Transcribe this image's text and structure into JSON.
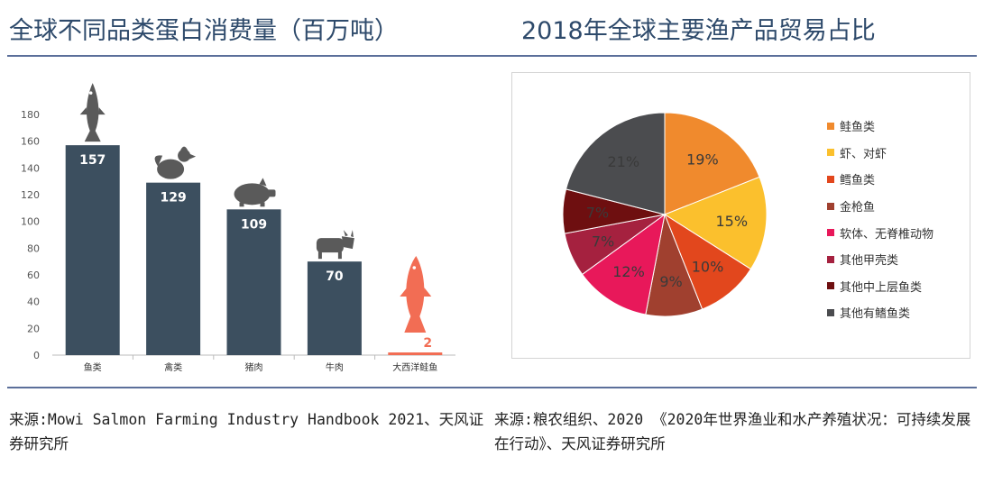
{
  "titles": {
    "left": "全球不同品类蛋白消费量（百万吨）",
    "right": "2018年全球主要渔产品贸易占比"
  },
  "sources": {
    "left": "来源:Mowi Salmon Farming Industry Handbook 2021、天风证券研究所",
    "right": "来源:粮农组织、2020 《2020年世界渔业和水产养殖状况：可持续发展在行动》、天风证券研究所"
  },
  "colors": {
    "title": "#2e4a6b",
    "rule": "#5b6f9a",
    "bar": "#3c4f5f",
    "salmon_bar": "#f26d54",
    "icon": "#5a5a5a"
  },
  "chart_data": [
    {
      "type": "bar",
      "categories": [
        "鱼类",
        "禽类",
        "猪肉",
        "牛肉",
        "大西洋鲑鱼"
      ],
      "values": [
        157,
        129,
        109,
        70,
        2
      ],
      "value_labels": [
        "157",
        "129",
        "109",
        "70",
        "2"
      ],
      "icons": [
        "fish-icon",
        "chicken-icon",
        "pig-icon",
        "cow-icon",
        "salmon-icon"
      ],
      "yticks": [
        "0",
        "20",
        "40",
        "60",
        "80",
        "100",
        "120",
        "140",
        "160",
        "180"
      ],
      "ylim": [
        0,
        180
      ],
      "grid": false,
      "title": "",
      "xlabel": "",
      "ylabel": ""
    },
    {
      "type": "pie",
      "labels": [
        "鲑鱼类",
        "虾、对虾",
        "鳕鱼类",
        "金枪鱼",
        "软体、无脊椎动物",
        "其他甲壳类",
        "其他中上层鱼类",
        "其他有鳍鱼类"
      ],
      "values": [
        19,
        15,
        10,
        9,
        12,
        7,
        7,
        21
      ],
      "value_labels": [
        "19%",
        "15%",
        "10%",
        "9%",
        "12%",
        "7%",
        "7%",
        "21%"
      ],
      "colors": [
        "#f08a2d",
        "#fbc02d",
        "#e2471d",
        "#a0402f",
        "#e8185a",
        "#a5213f",
        "#6e0f10",
        "#4b4c4f"
      ],
      "legend": "right",
      "title": ""
    }
  ]
}
